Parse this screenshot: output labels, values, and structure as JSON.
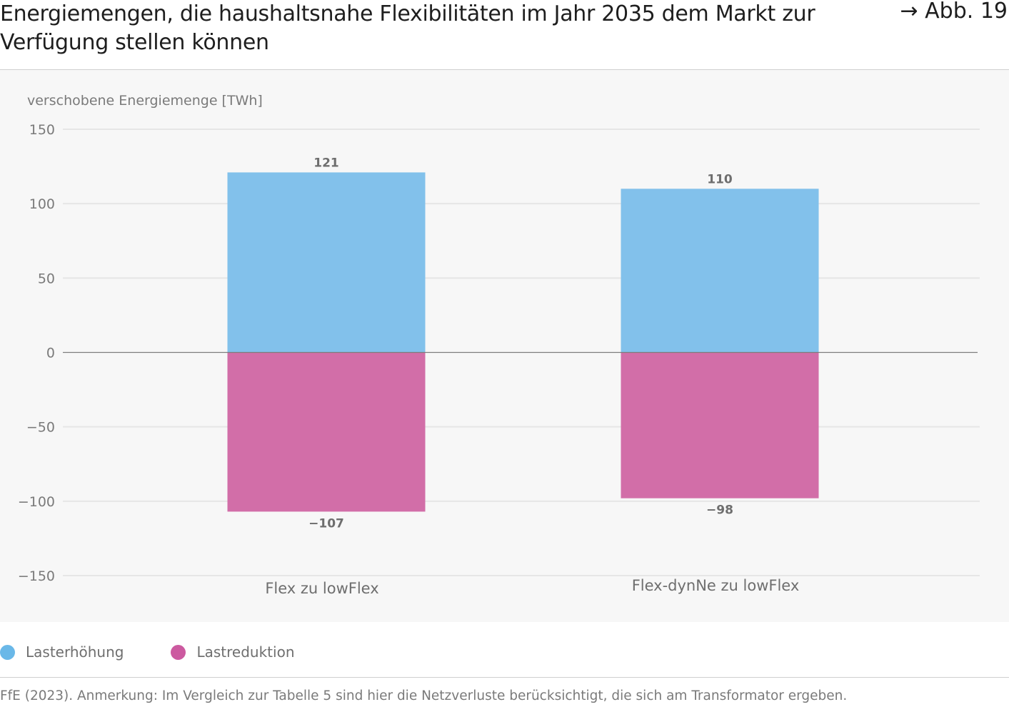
{
  "header": {
    "title": "Energiemengen, die haushaltsnahe Flexibilitäten im Jahr 2035 dem Markt zur Verfügung stellen können",
    "figure_ref": "→ Abb. 19"
  },
  "chart_data": {
    "type": "bar",
    "stacked": true,
    "ylabel": "verschobene Energiemenge [TWh]",
    "ylim": [
      -150,
      150
    ],
    "yticks": [
      150,
      100,
      50,
      0,
      -50,
      -100,
      -150
    ],
    "ytick_labels": [
      "150",
      "100",
      "50",
      "0",
      "−50",
      "−100",
      "−150"
    ],
    "categories": [
      "Flex zu lowFlex",
      "Flex-dynNe zu lowFlex"
    ],
    "series": [
      {
        "name": "Lasterhöhung",
        "values": [
          121,
          110
        ],
        "labels": [
          "121",
          "110"
        ],
        "color": "#82c1eb"
      },
      {
        "name": "Lastreduktion",
        "values": [
          -107,
          -98
        ],
        "labels": [
          "−107",
          "−98"
        ],
        "color": "#d26ea8"
      }
    ],
    "grid": true,
    "legend_position": "bottom-left"
  },
  "legend": {
    "items": [
      {
        "label": "Lasterhöhung",
        "color": "#6ab8e8"
      },
      {
        "label": "Lastreduktion",
        "color": "#cc5aa0"
      }
    ]
  },
  "footer": {
    "source": "FfE (2023). Anmerkung: Im Vergleich zur Tabelle 5 sind hier die Netzverluste berücksichtigt, die sich am Transformator ergeben."
  }
}
